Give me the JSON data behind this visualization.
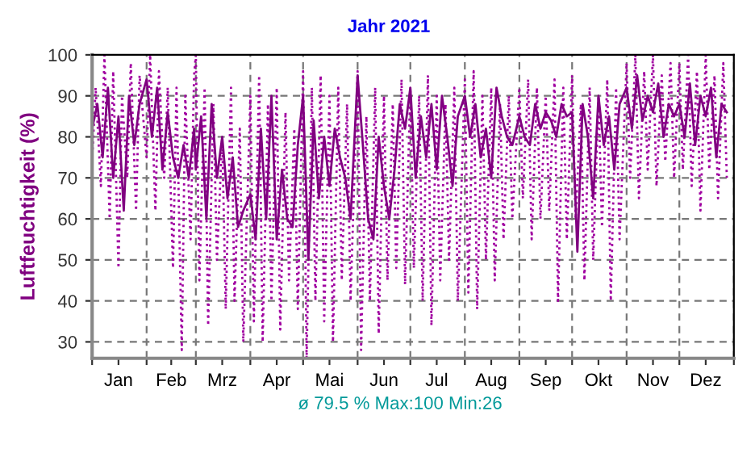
{
  "chart_data": {
    "type": "line",
    "title": "Jahr 2021",
    "ylabel": "Luftfeuchtigkeit (%)",
    "annotations": [
      "ø 79.5 % Max:100 Min:26"
    ],
    "xlim": [
      "2021-01-01",
      "2022-01-01"
    ],
    "xticks": [
      {
        "value": "2021-01-01",
        "label": null
      },
      {
        "value": "2021-01-16",
        "label": "Jan"
      },
      {
        "value": "2021-02-01",
        "label": null
      },
      {
        "value": "2021-02-15",
        "label": "Feb"
      },
      {
        "value": "2021-03-01",
        "label": null
      },
      {
        "value": "2021-03-16",
        "label": "Mrz"
      },
      {
        "value": "2021-04-01",
        "label": null
      },
      {
        "value": "2021-04-16",
        "label": "Apr"
      },
      {
        "value": "2021-05-01",
        "label": null
      },
      {
        "value": "2021-05-16",
        "label": "Mai"
      },
      {
        "value": "2021-06-01",
        "label": null
      },
      {
        "value": "2021-06-16",
        "label": "Jun"
      },
      {
        "value": "2021-07-01",
        "label": null
      },
      {
        "value": "2021-07-16",
        "label": "Jul"
      },
      {
        "value": "2021-08-01",
        "label": null
      },
      {
        "value": "2021-08-16",
        "label": "Aug"
      },
      {
        "value": "2021-09-01",
        "label": null
      },
      {
        "value": "2021-09-16",
        "label": "Sep"
      },
      {
        "value": "2021-10-01",
        "label": null
      },
      {
        "value": "2021-10-16",
        "label": "Okt"
      },
      {
        "value": "2021-11-01",
        "label": null
      },
      {
        "value": "2021-11-16",
        "label": "Nov"
      },
      {
        "value": "2021-12-01",
        "label": null
      },
      {
        "value": "2021-12-16",
        "label": "Dez"
      },
      {
        "value": "2022-01-01",
        "label": null
      }
    ],
    "ylim": [
      26,
      100
    ],
    "yticks": [
      30,
      40,
      50,
      60,
      70,
      80,
      90,
      100
    ],
    "grid": true,
    "series": [
      {
        "color": "#a000a0",
        "line_style": "dotted",
        "x": [
          "2021-01-01",
          "2021-01-03",
          "2021-01-06",
          "2021-01-08",
          "2021-01-11",
          "2021-01-13",
          "2021-01-16",
          "2021-01-18",
          "2021-01-21",
          "2021-01-23",
          "2021-01-26",
          "2021-01-28",
          "2021-02-01",
          "2021-02-03",
          "2021-02-06",
          "2021-02-08",
          "2021-02-11",
          "2021-02-13",
          "2021-02-16",
          "2021-02-18",
          "2021-02-21",
          "2021-02-23",
          "2021-02-26",
          "2021-02-28",
          "2021-03-01",
          "2021-03-03",
          "2021-03-06",
          "2021-03-08",
          "2021-03-11",
          "2021-03-13",
          "2021-03-16",
          "2021-03-18",
          "2021-03-21",
          "2021-03-23",
          "2021-03-26",
          "2021-03-28",
          "2021-04-01",
          "2021-04-03",
          "2021-04-06",
          "2021-04-08",
          "2021-04-11",
          "2021-04-13",
          "2021-04-16",
          "2021-04-18",
          "2021-04-21",
          "2021-04-23",
          "2021-04-26",
          "2021-04-28",
          "2021-05-01",
          "2021-05-03",
          "2021-05-06",
          "2021-05-08",
          "2021-05-11",
          "2021-05-13",
          "2021-05-16",
          "2021-05-18",
          "2021-05-21",
          "2021-05-23",
          "2021-05-26",
          "2021-05-28",
          "2021-06-01",
          "2021-06-03",
          "2021-06-06",
          "2021-06-08",
          "2021-06-11",
          "2021-06-13",
          "2021-06-16",
          "2021-06-18",
          "2021-06-21",
          "2021-06-23",
          "2021-06-26",
          "2021-06-28",
          "2021-07-01",
          "2021-07-03",
          "2021-07-06",
          "2021-07-08",
          "2021-07-11",
          "2021-07-13",
          "2021-07-16",
          "2021-07-18",
          "2021-07-21",
          "2021-07-23",
          "2021-07-26",
          "2021-07-28",
          "2021-08-01",
          "2021-08-03",
          "2021-08-06",
          "2021-08-08",
          "2021-08-11",
          "2021-08-13",
          "2021-08-16",
          "2021-08-18",
          "2021-08-21",
          "2021-08-23",
          "2021-08-26",
          "2021-08-28",
          "2021-09-01",
          "2021-09-03",
          "2021-09-06",
          "2021-09-08",
          "2021-09-11",
          "2021-09-13",
          "2021-09-16",
          "2021-09-18",
          "2021-09-21",
          "2021-09-23",
          "2021-09-26",
          "2021-09-28",
          "2021-10-01",
          "2021-10-03",
          "2021-10-06",
          "2021-10-08",
          "2021-10-11",
          "2021-10-13",
          "2021-10-16",
          "2021-10-18",
          "2021-10-21",
          "2021-10-23",
          "2021-10-26",
          "2021-10-28",
          "2021-11-01",
          "2021-11-03",
          "2021-11-06",
          "2021-11-08",
          "2021-11-11",
          "2021-11-13",
          "2021-11-16",
          "2021-11-18",
          "2021-11-21",
          "2021-11-23",
          "2021-11-26",
          "2021-11-28",
          "2021-12-01",
          "2021-12-03",
          "2021-12-06",
          "2021-12-08",
          "2021-12-11",
          "2021-12-13",
          "2021-12-16",
          "2021-12-18",
          "2021-12-21",
          "2021-12-23",
          "2021-12-26",
          "2021-12-28"
        ],
        "values": [
          74,
          92,
          68,
          100,
          60,
          96,
          48,
          90,
          70,
          98,
          62,
          95,
          75,
          100,
          62,
          96,
          70,
          92,
          48,
          92,
          28,
          90,
          55,
          95,
          100,
          45,
          92,
          34,
          88,
          50,
          80,
          38,
          92,
          40,
          82,
          30,
          90,
          35,
          95,
          30,
          88,
          40,
          92,
          33,
          86,
          45,
          82,
          38,
          96,
          26,
          92,
          40,
          95,
          35,
          90,
          30,
          92,
          45,
          88,
          40,
          96,
          28,
          85,
          40,
          92,
          32,
          90,
          45,
          88,
          48,
          94,
          44,
          92,
          48,
          90,
          40,
          95,
          34,
          90,
          45,
          88,
          50,
          92,
          40,
          94,
          42,
          96,
          38,
          90,
          50,
          92,
          45,
          88,
          55,
          90,
          60,
          92,
          65,
          94,
          55,
          92,
          60,
          90,
          62,
          94,
          40,
          92,
          55,
          95,
          60,
          88,
          45,
          92,
          50,
          90,
          58,
          94,
          40,
          92,
          55,
          98,
          70,
          100,
          65,
          96,
          72,
          100,
          68,
          95,
          74,
          98,
          70,
          98,
          72,
          100,
          68,
          96,
          62,
          100,
          72,
          95,
          65,
          98,
          70
        ]
      },
      {
        "color": "#800080",
        "line_style": "solid",
        "x": [
          "2021-01-01",
          "2021-01-04",
          "2021-01-07",
          "2021-01-10",
          "2021-01-13",
          "2021-01-16",
          "2021-01-19",
          "2021-01-22",
          "2021-01-25",
          "2021-01-28",
          "2021-02-01",
          "2021-02-04",
          "2021-02-07",
          "2021-02-10",
          "2021-02-13",
          "2021-02-16",
          "2021-02-19",
          "2021-02-22",
          "2021-02-25",
          "2021-02-28",
          "2021-03-01",
          "2021-03-04",
          "2021-03-07",
          "2021-03-10",
          "2021-03-13",
          "2021-03-16",
          "2021-03-19",
          "2021-03-22",
          "2021-03-25",
          "2021-03-28",
          "2021-04-01",
          "2021-04-04",
          "2021-04-07",
          "2021-04-10",
          "2021-04-13",
          "2021-04-16",
          "2021-04-19",
          "2021-04-22",
          "2021-04-25",
          "2021-04-28",
          "2021-05-01",
          "2021-05-04",
          "2021-05-07",
          "2021-05-10",
          "2021-05-13",
          "2021-05-16",
          "2021-05-19",
          "2021-05-22",
          "2021-05-25",
          "2021-05-28",
          "2021-06-01",
          "2021-06-04",
          "2021-06-07",
          "2021-06-10",
          "2021-06-13",
          "2021-06-16",
          "2021-06-19",
          "2021-06-22",
          "2021-06-25",
          "2021-06-28",
          "2021-07-01",
          "2021-07-04",
          "2021-07-07",
          "2021-07-10",
          "2021-07-13",
          "2021-07-16",
          "2021-07-19",
          "2021-07-22",
          "2021-07-25",
          "2021-07-28",
          "2021-08-01",
          "2021-08-04",
          "2021-08-07",
          "2021-08-10",
          "2021-08-13",
          "2021-08-16",
          "2021-08-19",
          "2021-08-22",
          "2021-08-25",
          "2021-08-28",
          "2021-09-01",
          "2021-09-04",
          "2021-09-07",
          "2021-09-10",
          "2021-09-13",
          "2021-09-16",
          "2021-09-19",
          "2021-09-22",
          "2021-09-25",
          "2021-09-28",
          "2021-10-01",
          "2021-10-04",
          "2021-10-07",
          "2021-10-10",
          "2021-10-13",
          "2021-10-16",
          "2021-10-19",
          "2021-10-22",
          "2021-10-25",
          "2021-10-28",
          "2021-11-01",
          "2021-11-04",
          "2021-11-07",
          "2021-11-10",
          "2021-11-13",
          "2021-11-16",
          "2021-11-19",
          "2021-11-22",
          "2021-11-25",
          "2021-11-28",
          "2021-12-01",
          "2021-12-04",
          "2021-12-07",
          "2021-12-10",
          "2021-12-13",
          "2021-12-16",
          "2021-12-19",
          "2021-12-22",
          "2021-12-25",
          "2021-12-28"
        ],
        "values": [
          82,
          88,
          75,
          92,
          70,
          85,
          62,
          90,
          78,
          88,
          94,
          80,
          92,
          72,
          86,
          75,
          70,
          78,
          70,
          82,
          72,
          85,
          60,
          88,
          70,
          80,
          65,
          75,
          58,
          62,
          66,
          55,
          82,
          60,
          90,
          55,
          72,
          60,
          58,
          78,
          90,
          50,
          84,
          65,
          80,
          68,
          82,
          75,
          70,
          60,
          95,
          78,
          60,
          55,
          80,
          68,
          60,
          72,
          88,
          82,
          92,
          70,
          85,
          75,
          88,
          72,
          90,
          80,
          68,
          85,
          90,
          80,
          88,
          75,
          82,
          70,
          92,
          85,
          80,
          78,
          85,
          80,
          78,
          88,
          82,
          86,
          84,
          80,
          88,
          85,
          86,
          52,
          88,
          80,
          65,
          90,
          78,
          85,
          72,
          88,
          92,
          82,
          95,
          84,
          90,
          86,
          93,
          80,
          88,
          85,
          88,
          80,
          93,
          78,
          90,
          85,
          92,
          75,
          88,
          86
        ]
      }
    ]
  }
}
